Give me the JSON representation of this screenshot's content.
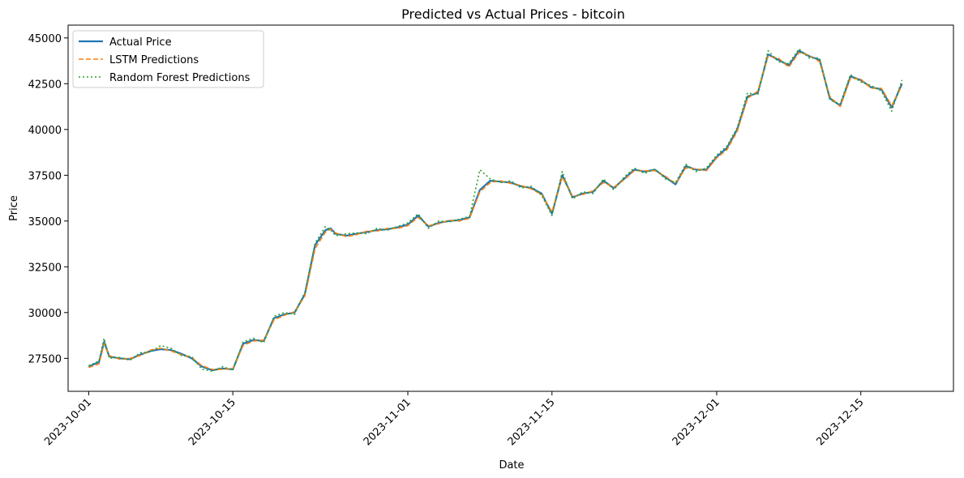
{
  "chart_data": {
    "type": "line",
    "title": "Predicted vs Actual Prices - bitcoin",
    "xlabel": "Date",
    "ylabel": "Price",
    "x_ticks": [
      "2023-10-01",
      "2023-10-15",
      "2023-11-01",
      "2023-11-15",
      "2023-12-01",
      "2023-12-15"
    ],
    "y_ticks": [
      27500,
      30000,
      32500,
      35000,
      37500,
      40000,
      42500,
      45000
    ],
    "xlim": [
      "2023-09-29",
      "2023-12-24"
    ],
    "ylim": [
      25700,
      45700
    ],
    "grid": false,
    "legend_position": "upper-left",
    "series": [
      {
        "name": "Actual Price",
        "color": "#1f77b4",
        "style": "solid"
      },
      {
        "name": "LSTM Predictions",
        "color": "#ff7f0e",
        "style": "dashed"
      },
      {
        "name": "Random Forest Predictions",
        "color": "#2ca02c",
        "style": "dotted"
      }
    ],
    "x": [
      "2023-10-01",
      "2023-10-02",
      "2023-10-02T12:00",
      "2023-10-03",
      "2023-10-04",
      "2023-10-05",
      "2023-10-06",
      "2023-10-07",
      "2023-10-08",
      "2023-10-09",
      "2023-10-10",
      "2023-10-11",
      "2023-10-12",
      "2023-10-13",
      "2023-10-14",
      "2023-10-15",
      "2023-10-16",
      "2023-10-17",
      "2023-10-18",
      "2023-10-19",
      "2023-10-20",
      "2023-10-21",
      "2023-10-22",
      "2023-10-23",
      "2023-10-24",
      "2023-10-24T12:00",
      "2023-10-25",
      "2023-10-26",
      "2023-10-27",
      "2023-10-28",
      "2023-10-29",
      "2023-10-30",
      "2023-10-31",
      "2023-11-01",
      "2023-11-02",
      "2023-11-03",
      "2023-11-04",
      "2023-11-05",
      "2023-11-06",
      "2023-11-07",
      "2023-11-08",
      "2023-11-09",
      "2023-11-10",
      "2023-11-11",
      "2023-11-12",
      "2023-11-13",
      "2023-11-14",
      "2023-11-15",
      "2023-11-16",
      "2023-11-17",
      "2023-11-18",
      "2023-11-19",
      "2023-11-20",
      "2023-11-21",
      "2023-11-22",
      "2023-11-23",
      "2023-11-24",
      "2023-11-25",
      "2023-11-26",
      "2023-11-27",
      "2023-11-28",
      "2023-11-29",
      "2023-11-30",
      "2023-12-01",
      "2023-12-02",
      "2023-12-03",
      "2023-12-04",
      "2023-12-05",
      "2023-12-06",
      "2023-12-07",
      "2023-12-08",
      "2023-12-09",
      "2023-12-10",
      "2023-12-11",
      "2023-12-12",
      "2023-12-13",
      "2023-12-14",
      "2023-12-15",
      "2023-12-16",
      "2023-12-17",
      "2023-12-18",
      "2023-12-19"
    ],
    "actual": [
      27050,
      27300,
      28400,
      27600,
      27500,
      27450,
      27700,
      27900,
      28000,
      27950,
      27750,
      27500,
      27050,
      26850,
      26950,
      26900,
      28300,
      28500,
      28450,
      29700,
      29900,
      30000,
      31000,
      33700,
      34500,
      34600,
      34300,
      34200,
      34300,
      34400,
      34500,
      34550,
      34650,
      34800,
      35300,
      34700,
      34900,
      35000,
      35050,
      35200,
      36700,
      37200,
      37150,
      37100,
      36900,
      36800,
      36500,
      35400,
      37500,
      36300,
      36500,
      36600,
      37200,
      36800,
      37300,
      37800,
      37700,
      37800,
      37400,
      37000,
      38000,
      37800,
      37800,
      38500,
      39000,
      40000,
      41800,
      42000,
      44100,
      43800,
      43500,
      44300,
      44000,
      43800,
      41700,
      41300,
      42900,
      42700,
      42300,
      42200,
      41200,
      42500
    ],
    "lstm": [
      27000,
      27200,
      28300,
      27650,
      27450,
      27500,
      27650,
      27950,
      28050,
      27900,
      27700,
      27550,
      27100,
      26900,
      26900,
      26950,
      28200,
      28450,
      28500,
      29600,
      29850,
      30050,
      30900,
      33500,
      34400,
      34550,
      34350,
      34150,
      34250,
      34450,
      34450,
      34600,
      34600,
      34750,
      35200,
      34750,
      34850,
      35050,
      35000,
      35150,
      36600,
      37100,
      37200,
      37050,
      36950,
      36750,
      36450,
      35500,
      37400,
      36350,
      36450,
      36650,
      37100,
      36850,
      37250,
      37750,
      37750,
      37750,
      37450,
      37050,
      37900,
      37850,
      37750,
      38450,
      38900,
      39900,
      41700,
      42100,
      44000,
      43900,
      43400,
      44200,
      44050,
      43700,
      41800,
      41250,
      42800,
      42750,
      42250,
      42250,
      41300,
      42400
    ],
    "rf": [
      27100,
      27350,
      28600,
      27500,
      27550,
      27400,
      27800,
      27850,
      28200,
      28050,
      27650,
      27600,
      26900,
      26800,
      27050,
      26850,
      28400,
      28600,
      28350,
      29800,
      30000,
      29900,
      31100,
      33800,
      34700,
      34500,
      34200,
      34300,
      34350,
      34300,
      34600,
      34500,
      34700,
      34900,
      35400,
      34600,
      35000,
      34950,
      35100,
      35250,
      37800,
      37300,
      37100,
      37200,
      36800,
      36900,
      36400,
      35300,
      37700,
      36200,
      36600,
      36500,
      37300,
      36700,
      37400,
      37900,
      37600,
      37850,
      37300,
      37100,
      38100,
      37700,
      37900,
      38600,
      39100,
      40100,
      42000,
      41900,
      44300,
      43700,
      43600,
      44400,
      43900,
      43900,
      41600,
      41400,
      43000,
      42600,
      42400,
      42100,
      41000,
      42700
    ]
  }
}
